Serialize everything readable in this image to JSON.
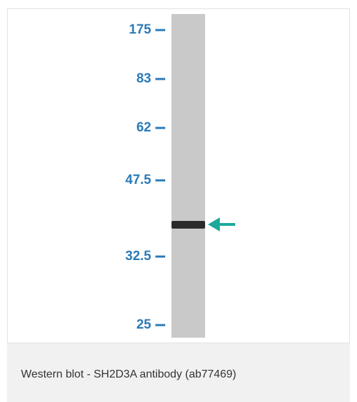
{
  "blot": {
    "markers": [
      "175",
      "83",
      "62",
      "47.5",
      "32.5",
      "25"
    ]
  },
  "caption": "Western blot - SH2D3A antibody (ab77469)"
}
